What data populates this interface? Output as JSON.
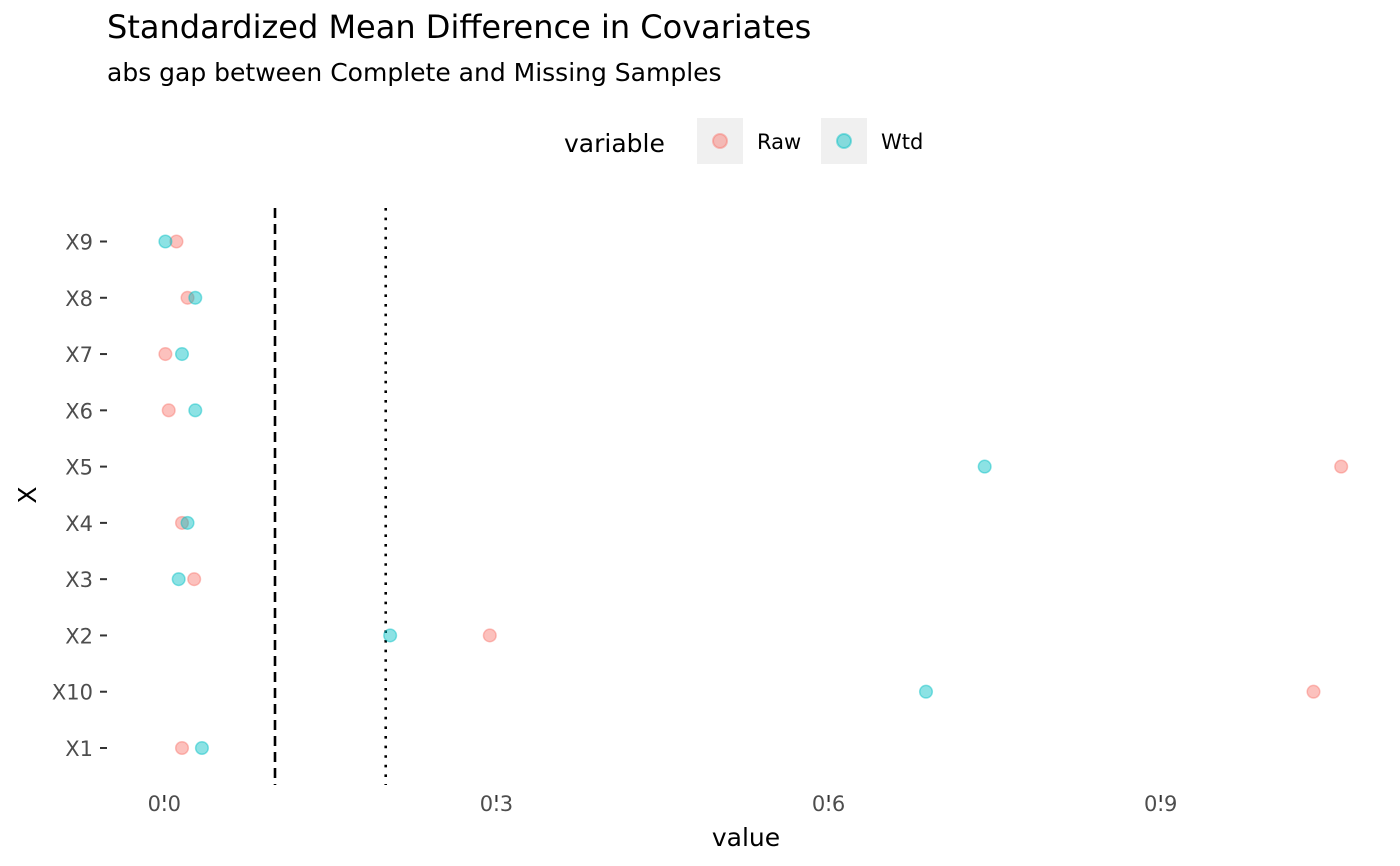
{
  "chart_data": {
    "type": "scatter",
    "title": "Standardized Mean Difference in Covariates",
    "subtitle": "abs gap between Complete and Missing Samples",
    "xlabel": "value",
    "ylabel": "X",
    "categories": [
      "X1",
      "X10",
      "X2",
      "X3",
      "X4",
      "X5",
      "X6",
      "X7",
      "X8",
      "X9"
    ],
    "xlim": [
      -0.04,
      1.08
    ],
    "x_ticks": [
      0.0,
      0.3,
      0.6,
      0.9
    ],
    "x_tick_labels": [
      "0.0",
      "0.3",
      "0.6",
      "0.9"
    ],
    "legend": {
      "title": "variable",
      "position": "top"
    },
    "series": [
      {
        "name": "Raw",
        "color": "#F8766D",
        "values": [
          0.016,
          1.038,
          0.294,
          0.027,
          0.016,
          1.063,
          0.004,
          0.001,
          0.021,
          0.011
        ]
      },
      {
        "name": "Wtd",
        "color": "#00BFC4",
        "values": [
          0.034,
          0.688,
          0.204,
          0.013,
          0.021,
          0.741,
          0.028,
          0.016,
          0.028,
          0.001
        ]
      }
    ],
    "reference_lines": [
      {
        "x": 0.1,
        "style": "dashed"
      },
      {
        "x": 0.2,
        "style": "dotted"
      }
    ],
    "grid": false
  }
}
